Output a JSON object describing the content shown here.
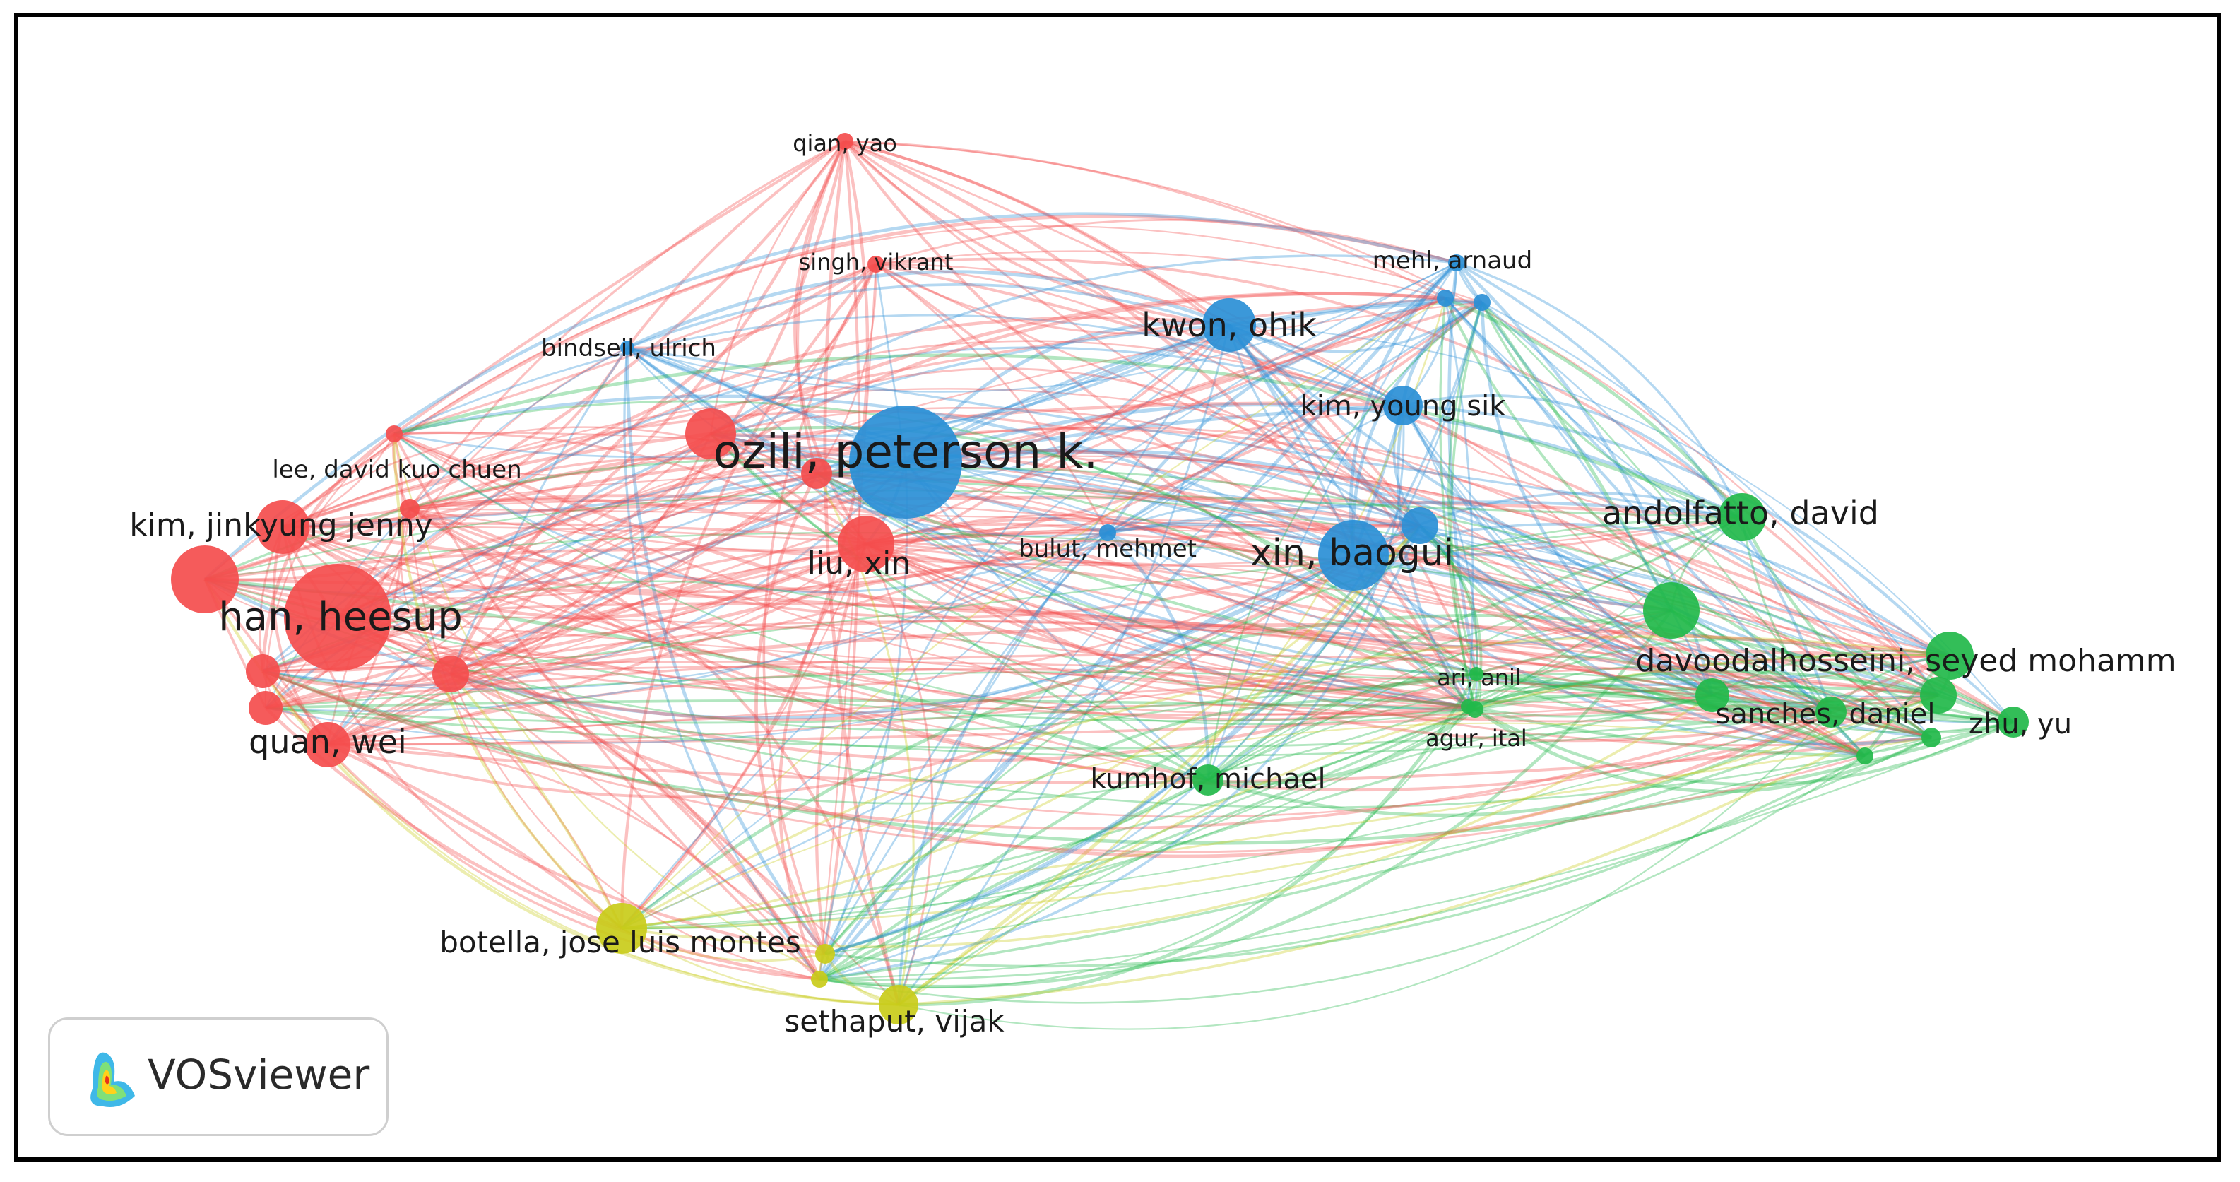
{
  "app": {
    "name": "VOSviewer"
  },
  "colors": {
    "red": "#f44d4d",
    "blue": "#2a8fd6",
    "green": "#22b84a",
    "yellow": "#c9cc1a"
  },
  "nodes": [
    {
      "id": "ozili",
      "label": "ozili, peterson k.",
      "cluster": "blue",
      "weight": 10
    },
    {
      "id": "han",
      "label": "han, heesup",
      "cluster": "red",
      "weight": 9
    },
    {
      "id": "kimjj",
      "label": "kim, jinkyung jenny",
      "cluster": "red",
      "weight": 5
    },
    {
      "id": "quan",
      "label": "quan, wei",
      "cluster": "red",
      "weight": 4
    },
    {
      "id": "liu",
      "label": "liu, xin",
      "cluster": "red",
      "weight": 5
    },
    {
      "id": "lee",
      "label": "lee, david kuo chuen",
      "cluster": "red",
      "weight": 1
    },
    {
      "id": "singh",
      "label": "singh, vikrant",
      "cluster": "red",
      "weight": 1
    },
    {
      "id": "qian",
      "label": "qian, yao",
      "cluster": "red",
      "weight": 1
    },
    {
      "id": "bindseil",
      "label": "bindseil, ulrich",
      "cluster": "blue",
      "weight": 1
    },
    {
      "id": "kwon",
      "label": "kwon, ohik",
      "cluster": "blue",
      "weight": 4
    },
    {
      "id": "mehl",
      "label": "mehl, arnaud",
      "cluster": "blue",
      "weight": 1
    },
    {
      "id": "kimys",
      "label": "kim, young sik",
      "cluster": "blue",
      "weight": 3
    },
    {
      "id": "xin",
      "label": "xin, baogui",
      "cluster": "blue",
      "weight": 6
    },
    {
      "id": "bulut",
      "label": "bulut, mehmet",
      "cluster": "blue",
      "weight": 1
    },
    {
      "id": "andolfatto",
      "label": "andolfatto, david",
      "cluster": "green",
      "weight": 4
    },
    {
      "id": "davood",
      "label": "davoodalhosseini, seyed mohamm",
      "cluster": "green",
      "weight": 4
    },
    {
      "id": "sanches",
      "label": "sanches, daniel",
      "cluster": "green",
      "weight": 2
    },
    {
      "id": "zhu",
      "label": "zhu, yu",
      "cluster": "green",
      "weight": 2
    },
    {
      "id": "ari",
      "label": "ari, anil",
      "cluster": "green",
      "weight": 1
    },
    {
      "id": "agur",
      "label": "agur, ital",
      "cluster": "green",
      "weight": 1
    },
    {
      "id": "kumhof",
      "label": "kumhof, michael",
      "cluster": "green",
      "weight": 2
    },
    {
      "id": "botella",
      "label": "botella, jose luis montes",
      "cluster": "yellow",
      "weight": 4
    },
    {
      "id": "sethaput",
      "label": "sethaput, vijak",
      "cluster": "yellow",
      "weight": 3
    }
  ]
}
